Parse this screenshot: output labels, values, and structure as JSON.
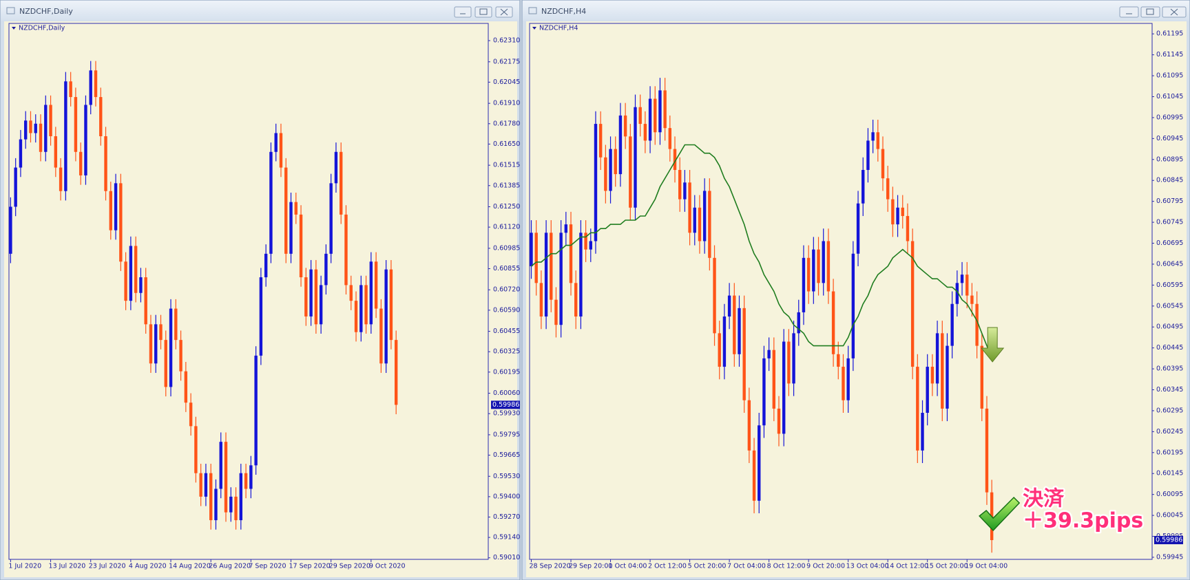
{
  "chart_data": [
    {
      "type": "candlestick",
      "title": "NZDCHF,Daily",
      "categories": [
        "1 Jul 2020",
        null,
        null,
        null,
        null,
        null,
        null,
        null,
        "13 Jul 2020",
        null,
        null,
        null,
        null,
        null,
        null,
        null,
        "23 Jul 2020",
        null,
        null,
        null,
        null,
        null,
        null,
        null,
        "4 Aug 2020",
        null,
        null,
        null,
        null,
        null,
        null,
        null,
        "14 Aug 2020",
        null,
        null,
        null,
        null,
        null,
        null,
        null,
        "26 Aug 2020",
        null,
        null,
        null,
        null,
        null,
        null,
        null,
        "7 Sep 2020",
        null,
        null,
        null,
        null,
        null,
        null,
        null,
        "17 Sep 2020",
        null,
        null,
        null,
        null,
        null,
        null,
        null,
        "29 Sep 2020",
        null,
        null,
        null,
        null,
        null,
        null,
        null,
        "9 Oct 2020",
        null,
        null,
        null,
        null,
        null
      ],
      "open": [
        0.6095,
        0.6125,
        0.615,
        0.6168,
        0.618,
        0.6172,
        0.6178,
        0.616,
        0.619,
        0.617,
        0.615,
        0.6135,
        0.6205,
        0.6195,
        0.616,
        0.6145,
        0.619,
        0.6212,
        0.6195,
        0.617,
        0.6135,
        0.611,
        0.614,
        0.609,
        0.6065,
        0.61,
        0.607,
        0.608,
        0.605,
        0.6025,
        0.605,
        0.604,
        0.601,
        0.606,
        0.604,
        0.602,
        0.6,
        0.5985,
        0.5955,
        0.594,
        0.5955,
        0.5925,
        0.5945,
        0.5975,
        0.593,
        0.594,
        0.5925,
        0.5955,
        0.5945,
        0.596,
        0.603,
        0.608,
        0.6095,
        0.616,
        0.6172,
        0.615,
        0.6095,
        0.6128,
        0.612,
        0.608,
        0.6055,
        0.6085,
        0.605,
        0.6075,
        0.6095,
        0.614,
        0.616,
        0.612,
        0.6075,
        0.6065,
        0.6045,
        0.6075,
        0.605,
        0.609,
        0.606,
        0.6025,
        0.6085,
        0.604
      ],
      "high": [
        0.6131,
        0.6156,
        0.6174,
        0.6186,
        0.6186,
        0.6184,
        0.6184,
        0.6196,
        0.6196,
        0.6176,
        0.6156,
        0.6211,
        0.6211,
        0.6201,
        0.6166,
        0.6196,
        0.6218,
        0.6218,
        0.6201,
        0.6176,
        0.6141,
        0.6146,
        0.6146,
        0.6096,
        0.6106,
        0.6106,
        0.6086,
        0.6086,
        0.6056,
        0.6056,
        0.6056,
        0.6046,
        0.6066,
        0.6066,
        0.6046,
        0.6026,
        0.6006,
        0.5991,
        0.5961,
        0.5961,
        0.5961,
        0.5951,
        0.5981,
        0.5981,
        0.5946,
        0.5946,
        0.5961,
        0.5961,
        0.5966,
        0.6036,
        0.6086,
        0.6101,
        0.6166,
        0.6178,
        0.6178,
        0.6156,
        0.6134,
        0.6134,
        0.6126,
        0.6086,
        0.6091,
        0.6091,
        0.6081,
        0.6101,
        0.6146,
        0.6166,
        0.6166,
        0.6126,
        0.6081,
        0.6071,
        0.6081,
        0.6081,
        0.6096,
        0.6096,
        0.6066,
        0.6091,
        0.6091,
        0.6046
      ],
      "low": [
        0.6089,
        0.6119,
        0.6144,
        0.6162,
        0.6166,
        0.6166,
        0.6154,
        0.6154,
        0.6164,
        0.6144,
        0.6129,
        0.6129,
        0.6189,
        0.6154,
        0.6139,
        0.6139,
        0.6184,
        0.6189,
        0.6164,
        0.6129,
        0.6104,
        0.6104,
        0.6084,
        0.6059,
        0.6059,
        0.6064,
        0.6064,
        0.6044,
        0.6019,
        0.6019,
        0.6034,
        0.6004,
        0.6004,
        0.6034,
        0.6014,
        0.5994,
        0.5979,
        0.5949,
        0.5934,
        0.5934,
        0.5919,
        0.5919,
        0.5939,
        0.5924,
        0.5924,
        0.5919,
        0.5919,
        0.5939,
        0.5939,
        0.5954,
        0.6024,
        0.6074,
        0.6089,
        0.6154,
        0.6144,
        0.6089,
        0.6089,
        0.6114,
        0.6074,
        0.6049,
        0.6049,
        0.6044,
        0.6044,
        0.6069,
        0.6089,
        0.6134,
        0.6114,
        0.6069,
        0.6059,
        0.6039,
        0.6039,
        0.6044,
        0.6044,
        0.6054,
        0.6019,
        0.6019,
        0.6034,
        0.59926
      ],
      "close": [
        0.6125,
        0.615,
        0.6168,
        0.618,
        0.6172,
        0.6178,
        0.616,
        0.619,
        0.617,
        0.615,
        0.6135,
        0.6205,
        0.6195,
        0.616,
        0.6145,
        0.619,
        0.6212,
        0.6195,
        0.617,
        0.6135,
        0.611,
        0.614,
        0.609,
        0.6065,
        0.61,
        0.607,
        0.608,
        0.605,
        0.6025,
        0.605,
        0.604,
        0.601,
        0.606,
        0.604,
        0.602,
        0.6,
        0.5985,
        0.5955,
        0.594,
        0.5955,
        0.5925,
        0.5945,
        0.5975,
        0.593,
        0.594,
        0.5925,
        0.5955,
        0.5945,
        0.596,
        0.603,
        0.608,
        0.6095,
        0.616,
        0.6172,
        0.615,
        0.6095,
        0.6128,
        0.612,
        0.608,
        0.6055,
        0.6085,
        0.605,
        0.6075,
        0.6095,
        0.614,
        0.616,
        0.612,
        0.6075,
        0.6065,
        0.6045,
        0.6075,
        0.605,
        0.609,
        0.606,
        0.6025,
        0.6085,
        0.604,
        0.59986
      ],
      "color_up": "#1414d8",
      "color_down": "#ff5418",
      "ylim": [
        0.59,
        0.6242
      ],
      "yticks": [
        {
          "value": 0.6231,
          "label": "0.62310"
        },
        0.62175,
        0.62045,
        {
          "value": 0.6191,
          "label": "0.61910"
        },
        {
          "value": 0.6178,
          "label": "0.61780"
        },
        {
          "value": 0.6165,
          "label": "0.61650"
        },
        0.61515,
        0.61385,
        {
          "value": 0.6125,
          "label": "0.61250"
        },
        {
          "value": 0.6112,
          "label": "0.61120"
        },
        0.60985,
        0.60855,
        {
          "value": 0.6072,
          "label": "0.60720"
        },
        {
          "value": 0.6059,
          "label": "0.60590"
        },
        0.60455,
        0.60325,
        0.60195,
        {
          "value": 0.6006,
          "label": "0.60060"
        },
        {
          "value": 0.5993,
          "label": "0.59930"
        },
        0.59795,
        0.59665,
        {
          "value": 0.5953,
          "label": "0.59530"
        },
        {
          "value": 0.594,
          "label": "0.59400"
        },
        {
          "value": 0.5927,
          "label": "0.59270"
        },
        {
          "value": 0.5914,
          "label": "0.59140"
        },
        {
          "value": 0.5901,
          "label": "0.59010"
        }
      ]
    },
    {
      "type": "candlestick",
      "title": "NZDCHF,H4",
      "categories": [
        "28 Sep 2020",
        null,
        null,
        null,
        null,
        null,
        null,
        null,
        "29 Sep 20:00",
        null,
        null,
        null,
        null,
        null,
        null,
        null,
        "1 Oct 04:00",
        null,
        null,
        null,
        null,
        null,
        null,
        null,
        "2 Oct 12:00",
        null,
        null,
        null,
        null,
        null,
        null,
        null,
        "5 Oct 20:00",
        null,
        null,
        null,
        null,
        null,
        null,
        null,
        "7 Oct 04:00",
        null,
        null,
        null,
        null,
        null,
        null,
        null,
        "8 Oct 12:00",
        null,
        null,
        null,
        null,
        null,
        null,
        null,
        "9 Oct 20:00",
        null,
        null,
        null,
        null,
        null,
        null,
        null,
        "13 Oct 04:00",
        null,
        null,
        null,
        null,
        null,
        null,
        null,
        "14 Oct 12:00",
        null,
        null,
        null,
        null,
        null,
        null,
        null,
        "15 Oct 20:00",
        null,
        null,
        null,
        null,
        null,
        null,
        null,
        "19 Oct 04:00",
        null,
        null,
        null,
        null,
        null
      ],
      "open": [
        0.6064,
        0.6072,
        0.606,
        0.6052,
        0.6072,
        0.6056,
        0.605,
        0.6072,
        0.6074,
        0.606,
        0.6052,
        0.6072,
        0.6068,
        0.607,
        0.6098,
        0.609,
        0.6082,
        0.6092,
        0.6086,
        0.61,
        0.6095,
        0.6078,
        0.6102,
        0.6098,
        0.6094,
        0.6104,
        0.6096,
        0.6106,
        0.6097,
        0.6092,
        0.6087,
        0.608,
        0.6084,
        0.6072,
        0.6078,
        0.607,
        0.6082,
        0.6066,
        0.6048,
        0.604,
        0.6052,
        0.6057,
        0.6043,
        0.6054,
        0.6032,
        0.602,
        0.6008,
        0.6026,
        0.6042,
        0.6044,
        0.603,
        0.6024,
        0.6046,
        0.6036,
        0.6048,
        0.6053,
        0.6066,
        0.6058,
        0.6068,
        0.606,
        0.607,
        0.6058,
        0.6043,
        0.604,
        0.6032,
        0.6042,
        0.6067,
        0.6079,
        0.6087,
        0.6094,
        0.6096,
        0.6092,
        0.6085,
        0.608,
        0.6074,
        0.6078,
        0.6076,
        0.607,
        0.604,
        0.602,
        0.6029,
        0.604,
        0.6036,
        0.6048,
        0.603,
        0.6045,
        0.6055,
        0.606,
        0.6062,
        0.6057,
        0.6055,
        0.6045,
        0.603,
        0.601
      ],
      "high": [
        0.6075,
        0.6075,
        0.6063,
        0.6075,
        0.6075,
        0.6059,
        0.6075,
        0.6077,
        0.6077,
        0.6063,
        0.6075,
        0.6075,
        0.6073,
        0.6101,
        0.6101,
        0.6093,
        0.6095,
        0.6095,
        0.6103,
        0.6103,
        0.6098,
        0.6105,
        0.6105,
        0.6101,
        0.6107,
        0.6107,
        0.6109,
        0.6109,
        0.61,
        0.6095,
        0.609,
        0.6087,
        0.6087,
        0.6081,
        0.6081,
        0.6085,
        0.6085,
        0.6069,
        0.6051,
        0.6055,
        0.606,
        0.606,
        0.6057,
        0.6057,
        0.6035,
        0.6023,
        0.6029,
        0.6045,
        0.6047,
        0.6047,
        0.6033,
        0.6049,
        0.6049,
        0.6051,
        0.6056,
        0.6069,
        0.6069,
        0.6071,
        0.6071,
        0.6073,
        0.6073,
        0.6061,
        0.6046,
        0.6043,
        0.6045,
        0.607,
        0.6082,
        0.609,
        0.6097,
        0.6099,
        0.6099,
        0.6095,
        0.6088,
        0.6083,
        0.6081,
        0.6081,
        0.6079,
        0.6073,
        0.6043,
        0.6032,
        0.6043,
        0.6043,
        0.6051,
        0.6051,
        0.6048,
        0.6058,
        0.6063,
        0.6065,
        0.6065,
        0.606,
        0.6058,
        0.6048,
        0.6033,
        0.6013
      ],
      "low": [
        0.6061,
        0.6057,
        0.6049,
        0.6049,
        0.6053,
        0.6047,
        0.6047,
        0.6069,
        0.6057,
        0.6049,
        0.6049,
        0.6065,
        0.6065,
        0.6067,
        0.6087,
        0.6079,
        0.6079,
        0.6083,
        0.6083,
        0.6092,
        0.6075,
        0.6075,
        0.6095,
        0.6091,
        0.6091,
        0.6093,
        0.6093,
        0.6094,
        0.6089,
        0.6084,
        0.6077,
        0.6077,
        0.6069,
        0.6069,
        0.6067,
        0.6067,
        0.6063,
        0.6045,
        0.6037,
        0.6037,
        0.6049,
        0.604,
        0.604,
        0.6029,
        0.6017,
        0.6005,
        0.6005,
        0.6023,
        0.6039,
        0.6027,
        0.6021,
        0.6021,
        0.6033,
        0.6033,
        0.6045,
        0.605,
        0.6055,
        0.6055,
        0.6057,
        0.6057,
        0.6055,
        0.604,
        0.6037,
        0.6029,
        0.6029,
        0.6039,
        0.6064,
        0.6076,
        0.6084,
        0.6091,
        0.6089,
        0.6082,
        0.6077,
        0.6071,
        0.6071,
        0.6073,
        0.6067,
        0.6037,
        0.6017,
        0.6017,
        0.6026,
        0.6033,
        0.6033,
        0.6027,
        0.6027,
        0.6042,
        0.6052,
        0.6057,
        0.6054,
        0.6052,
        0.6042,
        0.6027,
        0.6007,
        0.59956
      ],
      "close": [
        0.6072,
        0.606,
        0.6052,
        0.6072,
        0.6056,
        0.605,
        0.6072,
        0.6074,
        0.606,
        0.6052,
        0.6072,
        0.6068,
        0.607,
        0.6098,
        0.609,
        0.6082,
        0.6092,
        0.6086,
        0.61,
        0.6095,
        0.6078,
        0.6102,
        0.6098,
        0.6094,
        0.6104,
        0.6096,
        0.6106,
        0.6097,
        0.6092,
        0.6087,
        0.608,
        0.6084,
        0.6072,
        0.6078,
        0.607,
        0.6082,
        0.6066,
        0.6048,
        0.604,
        0.6052,
        0.6057,
        0.6043,
        0.6054,
        0.6032,
        0.602,
        0.6008,
        0.6026,
        0.6042,
        0.6044,
        0.603,
        0.6024,
        0.6046,
        0.6036,
        0.6048,
        0.6053,
        0.6066,
        0.6058,
        0.6068,
        0.606,
        0.607,
        0.6058,
        0.6043,
        0.604,
        0.6032,
        0.6042,
        0.6067,
        0.6079,
        0.6087,
        0.6094,
        0.6096,
        0.6092,
        0.6085,
        0.608,
        0.6074,
        0.6078,
        0.6076,
        0.607,
        0.604,
        0.602,
        0.6029,
        0.604,
        0.6036,
        0.6048,
        0.603,
        0.6045,
        0.6055,
        0.606,
        0.6062,
        0.6057,
        0.6055,
        0.6045,
        0.603,
        0.601,
        0.59986
      ],
      "overlay": {
        "color": "#1f7d1f",
        "values": [
          0.6064,
          0.6065,
          0.6065,
          0.6066,
          0.6067,
          0.6067,
          0.6068,
          0.6069,
          0.6069,
          0.607,
          0.6071,
          0.6071,
          0.6072,
          0.6072,
          0.6073,
          0.6073,
          0.6074,
          0.6074,
          0.6074,
          0.6075,
          0.6075,
          0.6075,
          0.6076,
          0.6076,
          0.6078,
          0.608,
          0.6083,
          0.6085,
          0.6087,
          0.6089,
          0.6091,
          0.6093,
          0.6093,
          0.6093,
          0.6092,
          0.6091,
          0.6091,
          0.609,
          0.6088,
          0.6085,
          0.6083,
          0.608,
          0.6077,
          0.6074,
          0.607,
          0.6067,
          0.6065,
          0.6062,
          0.606,
          0.6058,
          0.6055,
          0.6053,
          0.6052,
          0.605,
          0.6049,
          0.6048,
          0.6046,
          0.6045,
          0.6045,
          0.6045,
          0.6045,
          0.6045,
          0.6045,
          0.6045,
          0.6047,
          0.605,
          0.6052,
          0.6055,
          0.6057,
          0.606,
          0.6062,
          0.6063,
          0.6064,
          0.6066,
          0.6067,
          0.6068,
          0.6067,
          0.6066,
          0.6064,
          0.6063,
          0.6062,
          0.6061,
          0.6061,
          0.606,
          0.6059,
          0.6059,
          0.6058,
          0.6056,
          0.6055,
          0.6053,
          0.6051,
          0.6048,
          0.6045,
          0.6042
        ]
      },
      "annotation": [
        "決済",
        "＋39.3pips"
      ],
      "color_up": "#1414d8",
      "color_down": "#ff5418",
      "ylim": [
        0.5994,
        0.6122
      ],
      "yticks": [
        0.61195,
        0.61145,
        0.61095,
        0.61045,
        0.60995,
        0.60945,
        0.60895,
        0.60845,
        0.60795,
        0.60745,
        0.60695,
        0.60645,
        0.60595,
        0.60545,
        0.60495,
        0.60445,
        0.60395,
        0.60345,
        0.60295,
        0.60245,
        0.60195,
        0.60145,
        0.60095,
        0.60045,
        0.59995,
        0.59945
      ]
    }
  ]
}
